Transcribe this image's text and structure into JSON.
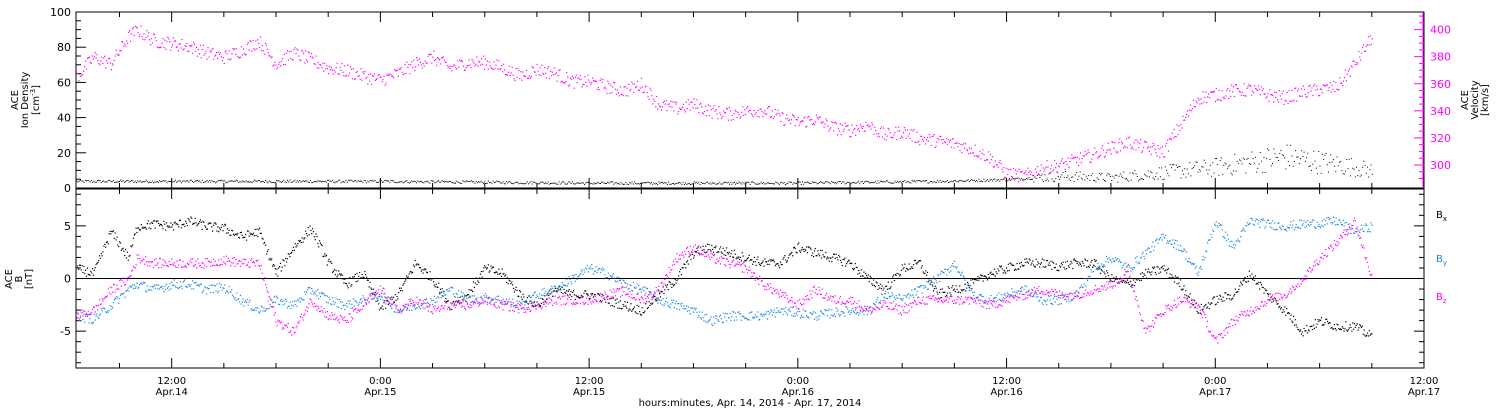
{
  "colors": {
    "black": "#000000",
    "magenta": "#ff00ff",
    "blue": "#1e88e5"
  },
  "x_axis": {
    "ticks": [
      {
        "time": "12:00",
        "date": "Apr.14"
      },
      {
        "time": "0:00",
        "date": "Apr.15"
      },
      {
        "time": "12:00",
        "date": "Apr.15"
      },
      {
        "time": "0:00",
        "date": "Apr.16"
      },
      {
        "time": "12:00",
        "date": "Apr.16"
      },
      {
        "time": "0:00",
        "date": "Apr.17"
      },
      {
        "time": "12:00",
        "date": "Apr.17"
      }
    ],
    "label": "hours:minutes, Apr. 14, 2014 - Apr. 17, 2014"
  },
  "chart_data": [
    {
      "type": "scatter",
      "panel": "top",
      "x_range_hours": [
        6.5,
        84
      ],
      "left_axis": {
        "label_lines": [
          "ACE",
          "Ion Density",
          "[cm"
        ],
        "unit_superscript": "-3",
        "unit_close": "]",
        "ylim": [
          0,
          100
        ],
        "ticks": [
          0,
          20,
          40,
          60,
          80,
          100
        ]
      },
      "right_axis": {
        "label_lines": [
          "ACE",
          "Velocity",
          "[km/s]"
        ],
        "ylim": [
          283,
          413
        ],
        "ticks": [
          300,
          320,
          340,
          360,
          380,
          400
        ]
      },
      "series": [
        {
          "axis": "left",
          "color": "magenta_is_right",
          "x": [
            6.5,
            12,
            24,
            36,
            48,
            56,
            60,
            63,
            66,
            68,
            72,
            74,
            76,
            80,
            81
          ],
          "values": [
            4,
            4,
            4,
            3,
            3,
            4,
            5,
            7,
            6,
            8,
            12,
            15,
            18,
            12,
            10
          ]
        },
        {
          "axis": "right",
          "x": [
            6.5,
            7.5,
            8.5,
            9.5,
            10,
            11,
            12,
            13,
            14,
            15,
            16,
            17,
            18,
            19,
            20,
            21,
            22,
            23,
            24,
            25,
            26,
            27,
            28,
            29,
            30,
            31,
            32,
            33,
            34,
            35,
            36,
            37,
            38,
            39,
            40,
            41,
            42,
            43,
            44,
            45,
            46,
            47,
            48,
            49,
            50,
            51,
            52,
            53,
            54,
            55,
            56,
            57,
            58,
            59,
            60,
            61,
            62,
            63,
            64,
            65,
            66,
            67,
            68,
            69,
            70,
            71,
            72,
            73,
            74,
            75,
            76,
            77,
            78,
            79,
            80,
            81
          ],
          "values": [
            365,
            380,
            375,
            395,
            400,
            392,
            390,
            388,
            383,
            380,
            385,
            392,
            375,
            383,
            378,
            372,
            370,
            366,
            363,
            368,
            375,
            380,
            372,
            376,
            376,
            372,
            366,
            371,
            368,
            362,
            362,
            358,
            355,
            360,
            345,
            342,
            345,
            340,
            338,
            340,
            341,
            335,
            332,
            334,
            328,
            326,
            330,
            322,
            325,
            320,
            318,
            316,
            312,
            306,
            294,
            292,
            298,
            300,
            304,
            308,
            313,
            317,
            313,
            310,
            330,
            350,
            352,
            355,
            356,
            352,
            350,
            354,
            356,
            358,
            375,
            395
          ]
        }
      ]
    },
    {
      "type": "scatter",
      "panel": "bottom",
      "x_range_hours": [
        6.5,
        84
      ],
      "y_axis": {
        "label_lines": [
          "ACE",
          "B",
          "[nT]"
        ],
        "ylim": [
          -8.5,
          8.5
        ],
        "ticks": [
          -5,
          0,
          5
        ]
      },
      "series": [
        {
          "name": "B",
          "name_sub": "x",
          "x": [
            6.5,
            7.5,
            8.5,
            9.5,
            10,
            11,
            12,
            13,
            14,
            15,
            16,
            17,
            18,
            19,
            20,
            21,
            22,
            23,
            24,
            25,
            26,
            27,
            28,
            29,
            30,
            31,
            32,
            33,
            34,
            35,
            36,
            37,
            38,
            39,
            40,
            41,
            42,
            43,
            44,
            45,
            46,
            47,
            48,
            49,
            50,
            51,
            52,
            53,
            54,
            55,
            56,
            57,
            58,
            59,
            60,
            61,
            62,
            63,
            64,
            65,
            66,
            67,
            68,
            69,
            70,
            71,
            72,
            73,
            74,
            75,
            76,
            77,
            78,
            79,
            80,
            81
          ],
          "values": [
            1,
            0.5,
            4.5,
            2,
            5,
            5.2,
            5,
            5.5,
            5,
            4.8,
            4,
            4.5,
            0.5,
            3,
            4.8,
            1.5,
            -0.5,
            0.5,
            -2.8,
            -1.5,
            1.5,
            0,
            -2.5,
            -1.5,
            1,
            0.5,
            -1.5,
            -2.5,
            -1,
            -1.5,
            -1.5,
            -2,
            -2.5,
            -3,
            -1.5,
            0,
            2.5,
            3,
            2.5,
            2,
            1.5,
            1.5,
            3,
            2.5,
            2,
            1.5,
            0,
            -1,
            1,
            1.5,
            -1.5,
            -1,
            -0.5,
            0.5,
            1,
            1.5,
            1.5,
            1.2,
            1.5,
            1.5,
            0,
            -0.5,
            0.5,
            1,
            -0.5,
            -3,
            -2,
            -1.5,
            0.5,
            -1.5,
            -3,
            -5,
            -4,
            -4.5,
            -4.5,
            -5.5
          ]
        },
        {
          "name": "B",
          "name_sub": "y",
          "x": [
            6.5,
            7.5,
            8.5,
            9.5,
            10,
            11,
            12,
            13,
            14,
            15,
            16,
            17,
            18,
            19,
            20,
            21,
            22,
            23,
            24,
            25,
            26,
            27,
            28,
            29,
            30,
            31,
            32,
            33,
            34,
            35,
            36,
            37,
            38,
            39,
            40,
            41,
            42,
            43,
            44,
            45,
            46,
            47,
            48,
            49,
            50,
            51,
            52,
            53,
            54,
            55,
            56,
            57,
            58,
            59,
            60,
            61,
            62,
            63,
            64,
            65,
            66,
            67,
            68,
            69,
            70,
            71,
            72,
            73,
            74,
            75,
            76,
            77,
            78,
            79,
            80,
            81
          ],
          "values": [
            -3.5,
            -3.8,
            -2.5,
            -1,
            -0.5,
            -1,
            -0.5,
            -0.5,
            -1,
            -0.8,
            -2,
            -3,
            -2,
            -2.5,
            -1,
            -2,
            -2.5,
            -2,
            -1.5,
            -3,
            -2.5,
            -2,
            -1,
            -2,
            -1.8,
            -2,
            -2.5,
            -1.5,
            -1,
            0,
            1,
            0.5,
            -0.5,
            -1,
            -2,
            -2.5,
            -3,
            -4,
            -3.5,
            -3.5,
            -3.5,
            -3,
            -3.2,
            -3.5,
            -3.2,
            -3,
            -3,
            -1.5,
            -2,
            -1,
            0,
            1.5,
            -1.5,
            -2,
            -1.5,
            -1,
            -2,
            -2,
            -1.5,
            1,
            2,
            1,
            2.5,
            4,
            3,
            0.5,
            5.5,
            3,
            5.5,
            5.2,
            5,
            5.2,
            5.3,
            5.5,
            4.5,
            5
          ]
        },
        {
          "name": "B",
          "name_sub": "z",
          "x": [
            6.5,
            7.5,
            8.5,
            9.5,
            10,
            11,
            12,
            13,
            14,
            15,
            16,
            17,
            18,
            19,
            20,
            21,
            22,
            23,
            24,
            25,
            26,
            27,
            28,
            29,
            30,
            31,
            32,
            33,
            34,
            35,
            36,
            37,
            38,
            39,
            40,
            41,
            42,
            43,
            44,
            45,
            46,
            47,
            48,
            49,
            50,
            51,
            52,
            53,
            54,
            55,
            56,
            57,
            58,
            59,
            60,
            61,
            62,
            63,
            64,
            65,
            66,
            67,
            68,
            69,
            70,
            71,
            72,
            73,
            74,
            75,
            76,
            77,
            78,
            79,
            80,
            81
          ],
          "values": [
            -3.5,
            -3,
            -1,
            0,
            2,
            1.5,
            1.5,
            1.5,
            1.5,
            1.8,
            1.5,
            1.5,
            -4,
            -5,
            -2,
            -3.5,
            -4,
            -2.5,
            -1,
            -3,
            -2,
            -3,
            -2.5,
            -2.5,
            -2,
            -2.5,
            -2.8,
            -2.5,
            -2,
            -2,
            -2,
            -1.5,
            -1.2,
            -2,
            -1,
            2,
            3,
            2,
            1.5,
            1,
            -0.5,
            -1.5,
            -2.5,
            -1,
            -2,
            -2,
            -3,
            -2.5,
            -3,
            -2,
            -2,
            -2,
            -2,
            -2.5,
            -2,
            -1.5,
            -1,
            -1.5,
            -1.5,
            -1,
            -0.5,
            0.5,
            -5,
            -3,
            -2,
            -2.5,
            -6,
            -4,
            -3,
            -2,
            -1.5,
            0,
            2,
            3.5,
            5.5,
            0
          ]
        }
      ]
    }
  ]
}
